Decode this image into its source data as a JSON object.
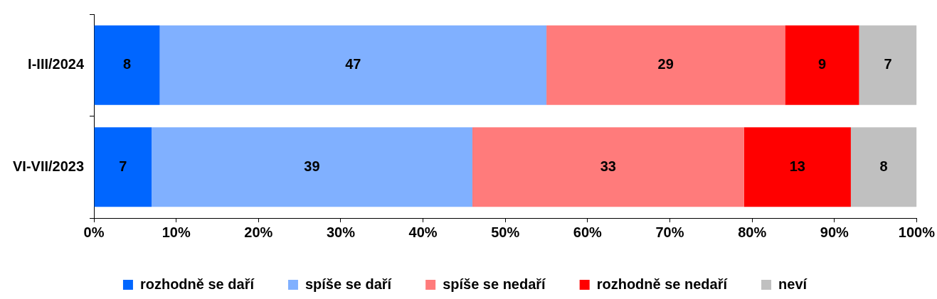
{
  "chart_data": {
    "type": "bar",
    "orientation": "horizontal",
    "stacked": true,
    "data_labels": true,
    "grid": false,
    "legend": "bottom",
    "categories": [
      "I-III/2024",
      "VI-VII/2023"
    ],
    "xlim": [
      0,
      100
    ],
    "xticks": [
      {
        "value": 0,
        "label": "0%"
      },
      {
        "value": 10,
        "label": "10%"
      },
      {
        "value": 20,
        "label": "20%"
      },
      {
        "value": 30,
        "label": "30%"
      },
      {
        "value": 40,
        "label": "40%"
      },
      {
        "value": 50,
        "label": "50%"
      },
      {
        "value": 60,
        "label": "60%"
      },
      {
        "value": 70,
        "label": "70%"
      },
      {
        "value": 80,
        "label": "80%"
      },
      {
        "value": 90,
        "label": "90%"
      },
      {
        "value": 100,
        "label": "100%"
      }
    ],
    "series": [
      {
        "name": "rozhodně se daří",
        "color": "#0066ff",
        "values": [
          8,
          7
        ]
      },
      {
        "name": "spíše se daří",
        "color": "#80b0ff",
        "values": [
          47,
          39
        ]
      },
      {
        "name": "spíše se nedaří",
        "color": "#ff7b7b",
        "values": [
          29,
          33
        ]
      },
      {
        "name": "rozhodně se nedaří",
        "color": "#ff0000",
        "values": [
          9,
          13
        ]
      },
      {
        "name": "neví",
        "color": "#c0c0c0",
        "values": [
          7,
          8
        ]
      }
    ]
  }
}
